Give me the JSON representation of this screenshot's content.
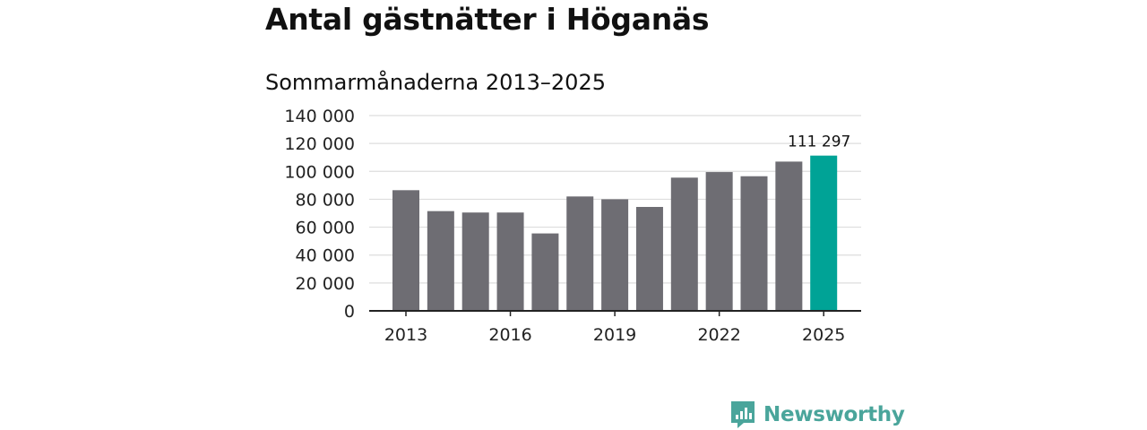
{
  "header": {
    "title": "Antal gästnätter i Höganäs",
    "subtitle": "Sommarmånaderna 2013–2025"
  },
  "brand": {
    "name": "Newsworthy",
    "icon": "newsworthy-logo-icon",
    "color": "#4aa59b"
  },
  "chart_data": {
    "type": "bar",
    "title": "Antal gästnätter i Höganäs",
    "subtitle": "Sommarmånaderna 2013–2025",
    "xlabel": "",
    "ylabel": "",
    "categories": [
      "2013",
      "2014",
      "2015",
      "2016",
      "2017",
      "2018",
      "2019",
      "2020",
      "2021",
      "2022",
      "2023",
      "2024",
      "2025"
    ],
    "values": [
      86500,
      71500,
      70500,
      70500,
      55500,
      82000,
      80000,
      74500,
      95500,
      99500,
      96500,
      107000,
      111297
    ],
    "ylim": [
      0,
      140000
    ],
    "yticks": [
      0,
      20000,
      40000,
      60000,
      80000,
      100000,
      120000,
      140000
    ],
    "ytick_labels": [
      "0",
      "20 000",
      "40 000",
      "60 000",
      "80 000",
      "100 000",
      "120 000",
      "140 000"
    ],
    "xtick_labels": [
      "2013",
      "2016",
      "2019",
      "2022",
      "2025"
    ],
    "data_labels": [
      {
        "category": "2025",
        "text": "111 297"
      }
    ],
    "grid": true,
    "colors": {
      "default": "#6e6d73",
      "highlight": "#00a396",
      "grid": "#dddddd",
      "axis": "#222222"
    },
    "highlight_category": "2025"
  }
}
